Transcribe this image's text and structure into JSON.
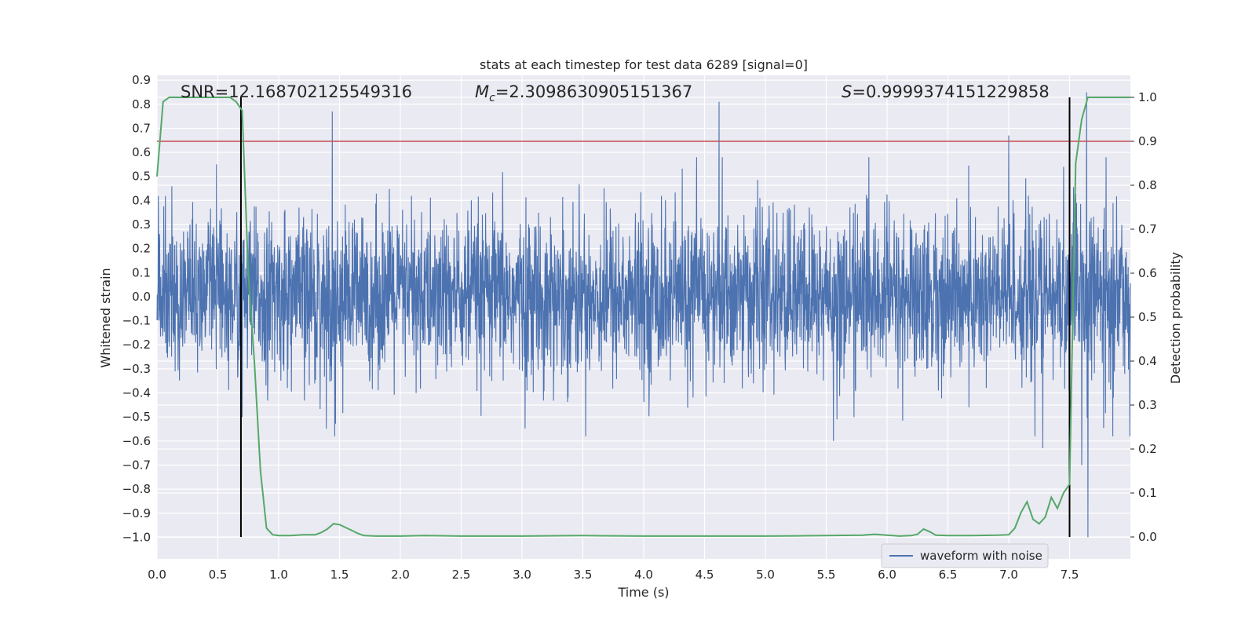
{
  "chart_data": {
    "type": "line",
    "title": "stats at each timestep for test data 6289 [signal=0]",
    "xlabel": "Time (s)",
    "ylabel": "Whitened strain",
    "y2label": "Detection probability",
    "xlim": [
      0.0,
      8.0
    ],
    "ylim": [
      -1.09,
      0.92
    ],
    "y2lim": [
      -0.05,
      1.05
    ],
    "x_ticks": [
      "0.0",
      "0.5",
      "1.0",
      "1.5",
      "2.0",
      "2.5",
      "3.0",
      "3.5",
      "4.0",
      "4.5",
      "5.0",
      "5.5",
      "6.0",
      "6.5",
      "7.0",
      "7.5"
    ],
    "y_ticks": [
      "0.9",
      "0.8",
      "0.7",
      "0.6",
      "0.5",
      "0.4",
      "0.3",
      "0.2",
      "0.1",
      "0.0",
      "−0.1",
      "−0.2",
      "−0.3",
      "−0.4",
      "−0.5",
      "−0.6",
      "−0.7",
      "−0.8",
      "−0.9",
      "−1.0"
    ],
    "y2_ticks": [
      "1.0",
      "0.9",
      "0.8",
      "0.7",
      "0.6",
      "0.5",
      "0.4",
      "0.3",
      "0.2",
      "0.1",
      "0.0"
    ],
    "grid": true,
    "legend_position": "lower right",
    "annotations": {
      "snr": "SNR=12.168702125549316",
      "mc_symbol": "M",
      "mc_sub": "c",
      "mc_value": "=2.3098630905151367",
      "s_symbol": "S",
      "s_value": "=0.9999374151229858"
    },
    "threshold": {
      "y2": 0.9,
      "color": "#c44e52"
    },
    "vertical_markers": [
      0.69,
      7.5
    ],
    "series": [
      {
        "name": "waveform with noise",
        "axis": "left",
        "color": "#4c72b0",
        "kind": "noise",
        "typical_range": [
          -0.3,
          0.3
        ],
        "peaks": [
          {
            "x": 1.44,
            "y": 0.77
          },
          {
            "x": 1.46,
            "y": -0.58
          },
          {
            "x": 4.62,
            "y": 0.81
          },
          {
            "x": 5.56,
            "y": -0.6
          },
          {
            "x": 7.0,
            "y": 0.67
          },
          {
            "x": 7.28,
            "y": -0.63
          },
          {
            "x": 7.45,
            "y": 0.54
          },
          {
            "x": 7.6,
            "y": -0.7
          },
          {
            "x": 7.64,
            "y": 0.85
          },
          {
            "x": 7.65,
            "y": -1.0
          },
          {
            "x": 0.49,
            "y": 0.55
          },
          {
            "x": 0.7,
            "y": -0.5
          }
        ]
      },
      {
        "name": "detection probability",
        "axis": "right",
        "color": "#55a868",
        "x": [
          0.0,
          0.05,
          0.1,
          0.2,
          0.3,
          0.4,
          0.5,
          0.6,
          0.65,
          0.7,
          0.75,
          0.8,
          0.85,
          0.9,
          0.95,
          1.0,
          1.1,
          1.2,
          1.3,
          1.35,
          1.4,
          1.45,
          1.5,
          1.6,
          1.65,
          1.7,
          1.8,
          2.0,
          2.2,
          2.5,
          3.0,
          3.5,
          4.0,
          4.5,
          5.0,
          5.5,
          5.8,
          5.9,
          6.0,
          6.1,
          6.2,
          6.25,
          6.3,
          6.35,
          6.4,
          6.5,
          6.7,
          6.9,
          7.0,
          7.05,
          7.1,
          7.15,
          7.2,
          7.25,
          7.3,
          7.35,
          7.4,
          7.45,
          7.5,
          7.55,
          7.6,
          7.65,
          7.7,
          7.8,
          7.9,
          8.0
        ],
        "y": [
          0.82,
          0.99,
          1.0,
          1.0,
          1.0,
          1.0,
          1.0,
          1.0,
          0.99,
          0.97,
          0.6,
          0.4,
          0.15,
          0.02,
          0.005,
          0.003,
          0.003,
          0.005,
          0.005,
          0.01,
          0.018,
          0.03,
          0.028,
          0.015,
          0.008,
          0.003,
          0.002,
          0.002,
          0.003,
          0.002,
          0.002,
          0.003,
          0.002,
          0.002,
          0.002,
          0.003,
          0.004,
          0.006,
          0.004,
          0.002,
          0.003,
          0.006,
          0.018,
          0.012,
          0.004,
          0.003,
          0.003,
          0.004,
          0.005,
          0.02,
          0.055,
          0.08,
          0.04,
          0.03,
          0.045,
          0.09,
          0.065,
          0.1,
          0.12,
          0.85,
          0.95,
          1.0,
          1.0,
          1.0,
          1.0,
          1.0
        ]
      }
    ]
  }
}
